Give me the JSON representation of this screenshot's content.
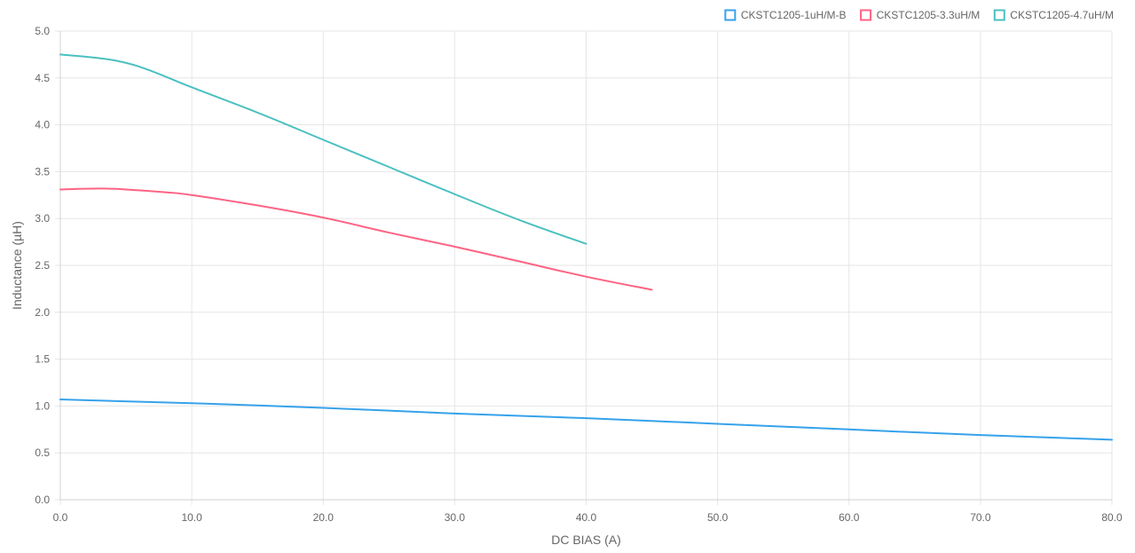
{
  "chart_data": {
    "type": "line",
    "xlabel": "DC BIAS (A)",
    "ylabel": "Inductance (µH)",
    "xlim": [
      0,
      80
    ],
    "ylim": [
      0,
      5
    ],
    "x_ticks": [
      "0.0",
      "10.0",
      "20.0",
      "30.0",
      "40.0",
      "50.0",
      "60.0",
      "70.0",
      "80.0"
    ],
    "y_ticks": [
      "0.0",
      "0.5",
      "1.0",
      "1.5",
      "2.0",
      "2.5",
      "3.0",
      "3.5",
      "4.0",
      "4.5",
      "5.0"
    ],
    "grid": true,
    "legend_position": "top-right",
    "series": [
      {
        "name": "CKSTC1205-1uH/M-B",
        "color": "#36a2eb",
        "points": [
          [
            0,
            1.07
          ],
          [
            10,
            1.03
          ],
          [
            20,
            0.98
          ],
          [
            30,
            0.92
          ],
          [
            40,
            0.87
          ],
          [
            50,
            0.81
          ],
          [
            60,
            0.75
          ],
          [
            70,
            0.69
          ],
          [
            80,
            0.64
          ]
        ]
      },
      {
        "name": "CKSTC1205-3.3uH/M",
        "color": "#ff6384",
        "points": [
          [
            0,
            3.31
          ],
          [
            3,
            3.32
          ],
          [
            5,
            3.31
          ],
          [
            8,
            3.28
          ],
          [
            10,
            3.25
          ],
          [
            15,
            3.14
          ],
          [
            20,
            3.01
          ],
          [
            25,
            2.85
          ],
          [
            30,
            2.7
          ],
          [
            35,
            2.54
          ],
          [
            40,
            2.38
          ],
          [
            45,
            2.24
          ]
        ]
      },
      {
        "name": "CKSTC1205-4.7uH/M",
        "color": "#4bc0c0",
        "points": [
          [
            0,
            4.75
          ],
          [
            3,
            4.71
          ],
          [
            5,
            4.66
          ],
          [
            7,
            4.57
          ],
          [
            10,
            4.4
          ],
          [
            15,
            4.13
          ],
          [
            20,
            3.84
          ],
          [
            25,
            3.55
          ],
          [
            30,
            3.26
          ],
          [
            35,
            2.98
          ],
          [
            40,
            2.73
          ]
        ]
      }
    ]
  }
}
